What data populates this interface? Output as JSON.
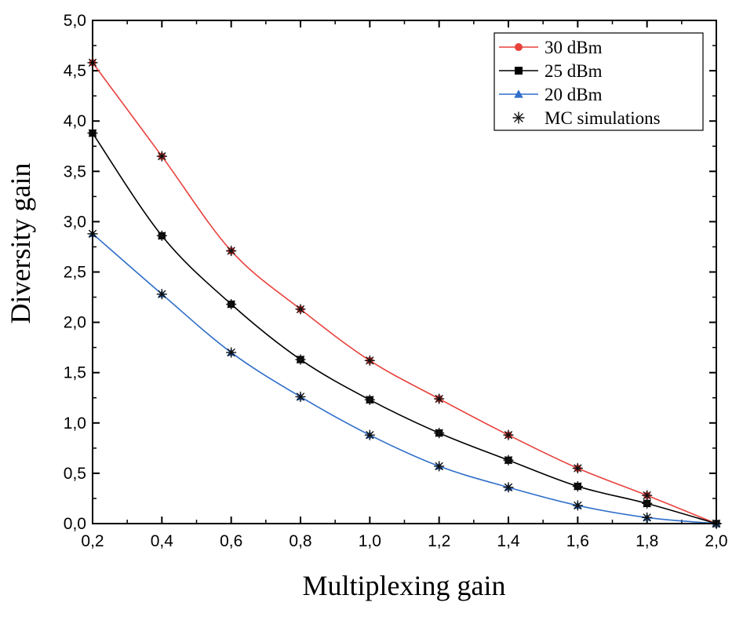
{
  "chart_data": {
    "type": "line",
    "title": "",
    "xlabel": "Multiplexing gain",
    "ylabel": "Diversity gain",
    "xlim": [
      0.2,
      2.0
    ],
    "ylim": [
      0.0,
      5.0
    ],
    "xticks": [
      "0,2",
      "0,4",
      "0,6",
      "0,8",
      "1,0",
      "1,2",
      "1,4",
      "1,6",
      "1,8",
      "2,0"
    ],
    "yticks": [
      "0,0",
      "0,5",
      "1,0",
      "1,5",
      "2,0",
      "2,5",
      "3,0",
      "3,5",
      "4,0",
      "4,5",
      "5,0"
    ],
    "x": [
      0.2,
      0.4,
      0.6,
      0.8,
      1.0,
      1.2,
      1.4,
      1.6,
      1.8,
      2.0
    ],
    "series": [
      {
        "name": "30 dBm",
        "color": "#e8413c",
        "marker": "circle",
        "values": [
          4.58,
          3.65,
          2.71,
          2.13,
          1.62,
          1.24,
          0.88,
          0.55,
          0.28,
          0.0
        ]
      },
      {
        "name": "25 dBm",
        "color": "#000000",
        "marker": "square",
        "values": [
          3.88,
          2.86,
          2.18,
          1.63,
          1.23,
          0.9,
          0.63,
          0.37,
          0.2,
          0.0
        ]
      },
      {
        "name": "20 dBm",
        "color": "#2f6fc9",
        "marker": "triangle",
        "values": [
          2.88,
          2.28,
          1.7,
          1.26,
          0.88,
          0.57,
          0.36,
          0.18,
          0.06,
          0.0
        ]
      }
    ],
    "simulations": {
      "name": "MC simulations",
      "color": "#111111",
      "marker": "asterisk"
    },
    "legend_position": "top-right"
  }
}
